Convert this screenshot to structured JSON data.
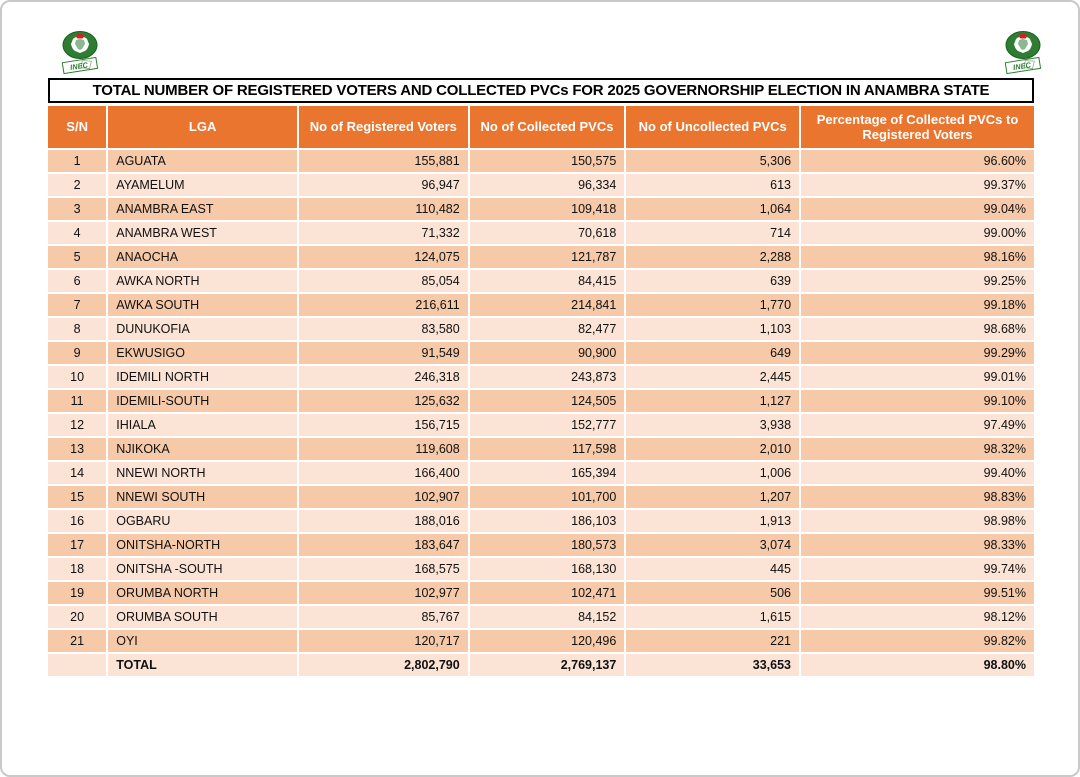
{
  "page": {
    "title": "TOTAL NUMBER OF REGISTERED VOTERS AND COLLECTED PVCs FOR 2025 GOVERNORSHIP ELECTION IN ANAMBRA STATE"
  },
  "logo": {
    "organization": "INEC",
    "banner_label": "INEC",
    "green": "#2E7D32",
    "dark_green": "#1B5E20",
    "red": "#C62828",
    "white": "#FFFFFF"
  },
  "colors": {
    "header_bg": "#E9752F",
    "header_text": "#FFFFFF",
    "row_dark": "#F6C9A8",
    "row_light": "#FBE3D5",
    "title_border": "#000000"
  },
  "table": {
    "columns": [
      "S/N",
      "LGA",
      "No of Registered Voters",
      "No of Collected PVCs",
      "No of Uncollected PVCs",
      "Percentage of Collected PVCs to Registered Voters"
    ],
    "rows": [
      [
        "1",
        "AGUATA",
        "155,881",
        "150,575",
        "5,306",
        "96.60%"
      ],
      [
        "2",
        "AYAMELUM",
        "96,947",
        "96,334",
        "613",
        "99.37%"
      ],
      [
        "3",
        "ANAMBRA EAST",
        "110,482",
        "109,418",
        "1,064",
        "99.04%"
      ],
      [
        "4",
        "ANAMBRA WEST",
        "71,332",
        "70,618",
        "714",
        "99.00%"
      ],
      [
        "5",
        "ANAOCHA",
        "124,075",
        "121,787",
        "2,288",
        "98.16%"
      ],
      [
        "6",
        "AWKA NORTH",
        "85,054",
        "84,415",
        "639",
        "99.25%"
      ],
      [
        "7",
        "AWKA SOUTH",
        "216,611",
        "214,841",
        "1,770",
        "99.18%"
      ],
      [
        "8",
        "DUNUKOFIA",
        "83,580",
        "82,477",
        "1,103",
        "98.68%"
      ],
      [
        "9",
        "EKWUSIGO",
        "91,549",
        "90,900",
        "649",
        "99.29%"
      ],
      [
        "10",
        "IDEMILI NORTH",
        "246,318",
        "243,873",
        "2,445",
        "99.01%"
      ],
      [
        "11",
        "IDEMILI-SOUTH",
        "125,632",
        "124,505",
        "1,127",
        "99.10%"
      ],
      [
        "12",
        "IHIALA",
        "156,715",
        "152,777",
        "3,938",
        "97.49%"
      ],
      [
        "13",
        "NJIKOKA",
        "119,608",
        "117,598",
        "2,010",
        "98.32%"
      ],
      [
        "14",
        "NNEWI NORTH",
        "166,400",
        "165,394",
        "1,006",
        "99.40%"
      ],
      [
        "15",
        "NNEWI SOUTH",
        "102,907",
        "101,700",
        "1,207",
        "98.83%"
      ],
      [
        "16",
        "OGBARU",
        "188,016",
        "186,103",
        "1,913",
        "98.98%"
      ],
      [
        "17",
        "ONITSHA-NORTH",
        "183,647",
        "180,573",
        "3,074",
        "98.33%"
      ],
      [
        "18",
        "ONITSHA -SOUTH",
        "168,575",
        "168,130",
        "445",
        "99.74%"
      ],
      [
        "19",
        "ORUMBA NORTH",
        "102,977",
        "102,471",
        "506",
        "99.51%"
      ],
      [
        "20",
        "ORUMBA  SOUTH",
        "85,767",
        "84,152",
        "1,615",
        "98.12%"
      ],
      [
        "21",
        "OYI",
        "120,717",
        "120,496",
        "221",
        "99.82%"
      ]
    ],
    "total_row": [
      "",
      "TOTAL",
      "2,802,790",
      "2,769,137",
      "33,653",
      "98.80%"
    ]
  }
}
